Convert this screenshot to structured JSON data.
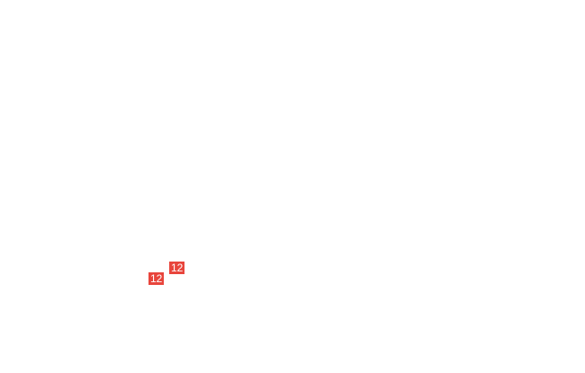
{
  "badges": [
    {
      "label": "12",
      "color": "#e8453c"
    },
    {
      "label": "12",
      "color": "#e8453c"
    }
  ]
}
